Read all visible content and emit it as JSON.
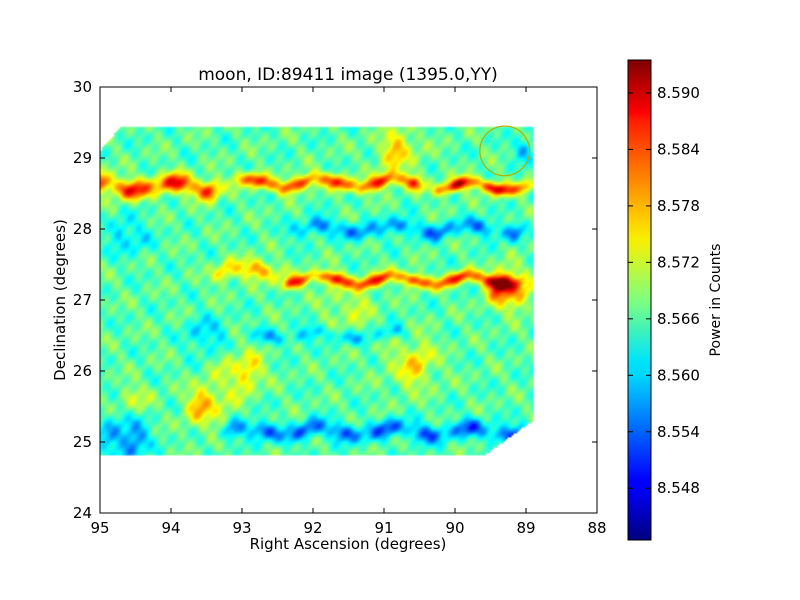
{
  "chart_data": {
    "type": "heatmap",
    "title": "moon, ID:89411 image (1395.0,YY)",
    "xlabel": "Right Ascension (degrees)",
    "ylabel": "Declination (degrees)",
    "xlim": [
      95,
      88
    ],
    "ylim": [
      24,
      30
    ],
    "xticks": [
      "95",
      "94",
      "93",
      "92",
      "91",
      "90",
      "89",
      "88"
    ],
    "yticks": [
      "24",
      "25",
      "26",
      "27",
      "28",
      "29",
      "30"
    ],
    "colorbar": {
      "label": "Power in Counts",
      "range": [
        8.5425,
        8.5935
      ],
      "ticks": [
        "8.548",
        "8.554",
        "8.560",
        "8.566",
        "8.572",
        "8.578",
        "8.584",
        "8.590"
      ],
      "colormap": "jet"
    },
    "grid": false,
    "map_region": {
      "ra_range": [
        95.0,
        88.9
      ],
      "dec_range": [
        24.8,
        29.45
      ],
      "background_level": 8.566
    },
    "features": [
      {
        "kind": "ridge",
        "dec": 28.6,
        "ra_from": 94.95,
        "ra_to": 93.5,
        "level": 8.586,
        "width": 0.14
      },
      {
        "kind": "ridge",
        "dec": 28.65,
        "ra_from": 93.0,
        "ra_to": 90.6,
        "level": 8.585,
        "width": 0.1
      },
      {
        "kind": "ridge",
        "dec": 28.6,
        "ra_from": 90.2,
        "ra_to": 89.05,
        "level": 8.588,
        "width": 0.09
      },
      {
        "kind": "ridge",
        "dec": 28.0,
        "ra_from": 92.2,
        "ra_to": 89.2,
        "level": 8.556,
        "width": 0.12
      },
      {
        "kind": "ridge",
        "dec": 27.28,
        "ra_from": 92.3,
        "ra_to": 89.2,
        "level": 8.585,
        "width": 0.09
      },
      {
        "kind": "blob",
        "ra": 89.25,
        "dec": 27.15,
        "level": 8.591,
        "width": 0.25
      },
      {
        "kind": "ridge",
        "dec": 27.4,
        "ra_from": 93.2,
        "ra_to": 92.6,
        "level": 8.579,
        "width": 0.14
      },
      {
        "kind": "ridge",
        "dec": 26.5,
        "ra_from": 92.8,
        "ra_to": 90.8,
        "level": 8.559,
        "width": 0.1
      },
      {
        "kind": "ridge",
        "dec": 25.15,
        "ra_from": 93.1,
        "ra_to": 89.1,
        "level": 8.554,
        "width": 0.13
      },
      {
        "kind": "blob",
        "ra": 94.65,
        "dec": 25.05,
        "level": 8.552,
        "width": 0.3
      },
      {
        "kind": "blob",
        "ra": 93.5,
        "dec": 25.5,
        "level": 8.579,
        "width": 0.3
      },
      {
        "kind": "blob",
        "ra": 94.5,
        "dec": 25.6,
        "level": 8.574,
        "width": 0.2
      },
      {
        "kind": "blob",
        "ra": 93.0,
        "dec": 26.0,
        "level": 8.577,
        "width": 0.3
      },
      {
        "kind": "blob",
        "ra": 90.6,
        "dec": 26.1,
        "level": 8.576,
        "width": 0.35
      },
      {
        "kind": "blob",
        "ra": 94.6,
        "dec": 27.9,
        "level": 8.557,
        "width": 0.25
      },
      {
        "kind": "blob",
        "ra": 93.5,
        "dec": 26.5,
        "level": 8.557,
        "width": 0.25
      },
      {
        "kind": "blob",
        "ra": 91.5,
        "dec": 26.9,
        "level": 8.572,
        "width": 0.35
      },
      {
        "kind": "blob",
        "ra": 90.8,
        "dec": 29.1,
        "level": 8.577,
        "width": 0.3
      },
      {
        "kind": "blob",
        "ra": 89.0,
        "dec": 29.1,
        "level": 8.556,
        "width": 0.15
      }
    ],
    "overlay_circle": {
      "ra": 89.3,
      "dec": 29.1,
      "radius_deg": 0.35,
      "color": "#b0b000"
    }
  }
}
